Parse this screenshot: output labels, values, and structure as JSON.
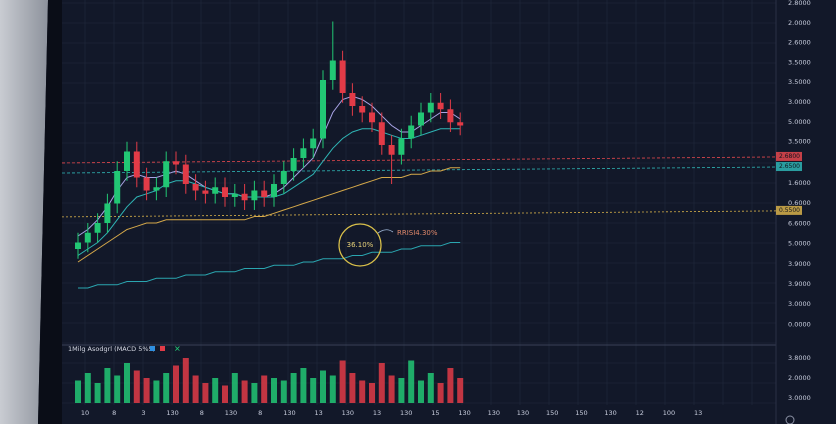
{
  "chart_data": {
    "type": "candlestick",
    "ylim": [
      0,
      100
    ],
    "up_color": "#22c774",
    "down_color": "#e23b47",
    "open": [
      28,
      30,
      33,
      36,
      42,
      52,
      58,
      50,
      46,
      47,
      55,
      54,
      48,
      46,
      45,
      47,
      44,
      45,
      43,
      46,
      44,
      48,
      52,
      56,
      59,
      62,
      80,
      86,
      76,
      72,
      70,
      67,
      60,
      57,
      62,
      66,
      70,
      73,
      71,
      67
    ],
    "high": [
      33,
      36,
      39,
      45,
      55,
      61,
      61,
      53,
      50,
      58,
      58,
      57,
      51,
      49,
      50,
      50,
      48,
      48,
      49,
      49,
      51,
      55,
      59,
      62,
      65,
      83,
      98,
      89,
      79,
      75,
      73,
      70,
      63,
      65,
      69,
      73,
      76,
      76,
      74,
      70
    ],
    "low": [
      25,
      27,
      30,
      33,
      39,
      49,
      47,
      43,
      43,
      44,
      51,
      45,
      43,
      42,
      42,
      41,
      41,
      40,
      40,
      41,
      41,
      45,
      49,
      53,
      56,
      59,
      77,
      73,
      69,
      67,
      64,
      57,
      48,
      54,
      59,
      63,
      67,
      68,
      64,
      63
    ],
    "close": [
      30,
      33,
      36,
      42,
      52,
      58,
      50,
      46,
      47,
      55,
      54,
      48,
      46,
      45,
      47,
      44,
      45,
      43,
      46,
      44,
      48,
      52,
      56,
      59,
      62,
      80,
      86,
      76,
      72,
      70,
      67,
      60,
      57,
      62,
      66,
      70,
      73,
      71,
      67,
      66
    ],
    "series": [
      {
        "color": "#a9a4e6",
        "values": [
          32,
          34,
          37,
          41,
          46,
          50,
          51,
          50,
          50,
          51,
          52,
          51,
          49,
          47,
          46,
          45,
          45,
          44,
          44,
          44,
          45,
          47,
          50,
          53,
          56,
          63,
          70,
          74,
          75,
          74,
          72,
          69,
          66,
          64,
          64,
          66,
          68,
          70,
          70,
          68
        ]
      },
      {
        "color": "#2fb5b5",
        "values": [
          26,
          28,
          30,
          33,
          37,
          41,
          44,
          45,
          46,
          48,
          49,
          49,
          48,
          47,
          46,
          45,
          45,
          44,
          44,
          44,
          44,
          45,
          47,
          49,
          51,
          55,
          59,
          62,
          64,
          65,
          65,
          64,
          63,
          62,
          62,
          63,
          64,
          65,
          65,
          65
        ]
      },
      {
        "color": "#d6a94a",
        "values": [
          24,
          26,
          28,
          30,
          32,
          34,
          35,
          36,
          36,
          37,
          37,
          37,
          37,
          37,
          37,
          37,
          37,
          37,
          38,
          38,
          39,
          40,
          41,
          42,
          43,
          44,
          45,
          46,
          47,
          48,
          49,
          50,
          50,
          50,
          51,
          51,
          52,
          52,
          53,
          53
        ]
      },
      {
        "color": "#2aa6b0",
        "values": [
          16,
          16,
          17,
          17,
          17,
          18,
          18,
          18,
          19,
          19,
          19,
          20,
          20,
          20,
          21,
          21,
          21,
          22,
          22,
          22,
          23,
          23,
          23,
          24,
          24,
          25,
          25,
          25,
          26,
          26,
          27,
          27,
          27,
          28,
          28,
          29,
          29,
          29,
          30,
          30
        ]
      }
    ],
    "levels": [
      {
        "value": 55.4,
        "label": "2.6800",
        "color": "#e5484d"
      },
      {
        "value": 52.3,
        "label": "2.6500",
        "color": "#2fb5b5"
      },
      {
        "value": 38.8,
        "label": "0.5500",
        "color": "#d8b24a"
      }
    ],
    "price_labels": [
      "2.8000",
      "2.0000",
      "2.6000",
      "3.5000",
      "3.5000",
      "3.0000",
      "5.0000",
      "3.5000",
      "1.6000",
      "0.6000",
      "6.6000",
      "5.0000",
      "3.9000",
      "3.9000",
      "3.0000",
      "0.0000"
    ],
    "annotations": [
      "36.10%",
      "RRISI4.30%"
    ],
    "volume": {
      "title": "1Milg Asodgrl (MACD 5%5)",
      "ylim": [
        0,
        100
      ],
      "values": [
        45,
        60,
        40,
        70,
        55,
        80,
        65,
        50,
        45,
        60,
        75,
        90,
        55,
        40,
        50,
        35,
        60,
        45,
        40,
        55,
        50,
        45,
        60,
        70,
        50,
        65,
        55,
        85,
        60,
        45,
        40,
        80,
        55,
        50,
        85,
        45,
        60,
        40,
        70,
        50
      ],
      "labels": [
        "3.8000",
        "2.0000",
        "3.0000"
      ]
    },
    "x_labels": [
      "10",
      "8",
      "3",
      "130",
      "8",
      "130",
      "8",
      "130",
      "13",
      "130",
      "13",
      "130",
      "15",
      "130",
      "130",
      "130",
      "150",
      "150",
      "130",
      "12",
      "100",
      "13"
    ]
  }
}
